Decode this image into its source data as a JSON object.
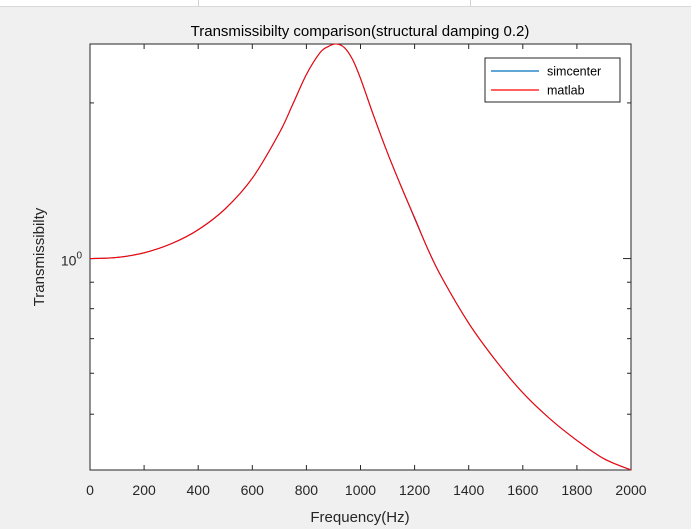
{
  "figure": {
    "background": "#f0f0f0",
    "axes_background": "#ffffff"
  },
  "chart_data": {
    "type": "line",
    "title": "Transmissibilty comparison(structural damping 0.2)",
    "xlabel": "Frequency(Hz)",
    "ylabel": "Transmissibilty",
    "xlim": [
      0,
      2000
    ],
    "ylim": [
      0.39,
      2.6
    ],
    "yscale": "log",
    "grid": false,
    "legend_position": "top-right",
    "x_ticks": [
      0,
      200,
      400,
      600,
      800,
      1000,
      1200,
      1400,
      1600,
      1800,
      2000
    ],
    "x_tick_labels": [
      "0",
      "200",
      "400",
      "600",
      "800",
      "1000",
      "1200",
      "1400",
      "1600",
      "1800",
      "2000"
    ],
    "y_ticks": [
      1
    ],
    "y_tick_labels": [
      {
        "base": "10",
        "exp": "0"
      }
    ],
    "y_minor_ticks": [
      0.5,
      0.6,
      0.7,
      0.8,
      0.9,
      2
    ],
    "series": [
      {
        "name": "simcenter",
        "color": "#0072bd",
        "x": [
          0,
          100,
          200,
          300,
          400,
          500,
          600,
          700,
          750,
          800,
          850,
          880,
          910,
          940,
          970,
          1000,
          1050,
          1100,
          1150,
          1200,
          1250,
          1300,
          1400,
          1500,
          1600,
          1700,
          1800,
          1900,
          2000
        ],
        "y": [
          1.0,
          1.005,
          1.026,
          1.068,
          1.137,
          1.248,
          1.43,
          1.75,
          1.99,
          2.27,
          2.5,
          2.57,
          2.6,
          2.56,
          2.43,
          2.23,
          1.88,
          1.6,
          1.38,
          1.195,
          1.04,
          0.92,
          0.75,
          0.635,
          0.55,
          0.49,
          0.445,
          0.41,
          0.39
        ]
      },
      {
        "name": "matlab",
        "color": "#ff0000",
        "x": [
          0,
          100,
          200,
          300,
          400,
          500,
          600,
          700,
          750,
          800,
          850,
          880,
          910,
          940,
          970,
          1000,
          1050,
          1100,
          1150,
          1200,
          1250,
          1300,
          1400,
          1500,
          1600,
          1700,
          1800,
          1900,
          2000
        ],
        "y": [
          1.0,
          1.005,
          1.026,
          1.068,
          1.137,
          1.248,
          1.43,
          1.75,
          1.99,
          2.27,
          2.5,
          2.57,
          2.6,
          2.56,
          2.43,
          2.23,
          1.88,
          1.6,
          1.38,
          1.2,
          1.04,
          0.92,
          0.75,
          0.635,
          0.55,
          0.49,
          0.445,
          0.41,
          0.39
        ]
      }
    ]
  }
}
